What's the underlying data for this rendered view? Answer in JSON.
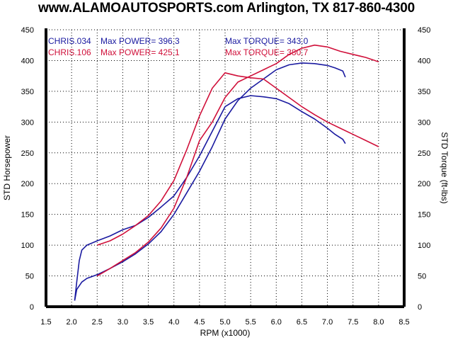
{
  "header": {
    "title": "www.ALAMOAUTOSPORTS.com Arlington, TX 817-860-4300"
  },
  "chart_data": {
    "type": "line",
    "xlabel": "RPM (x1000)",
    "ylabel": "STD Horsepower",
    "y2label": "STD Torque (ft-lbs)",
    "xlim": [
      1.5,
      8.5
    ],
    "ylim": [
      0,
      450
    ],
    "y2lim": [
      0,
      450
    ],
    "x_ticks": [
      "1.5",
      "2.0",
      "2.5",
      "3.0",
      "3.5",
      "4.0",
      "4.5",
      "5.0",
      "5.5",
      "6.0",
      "6.5",
      "7.0",
      "7.5",
      "8.0",
      "8.5"
    ],
    "y_ticks": [
      "0",
      "50",
      "100",
      "150",
      "200",
      "250",
      "300",
      "350",
      "400",
      "450"
    ],
    "grid": true,
    "legend": [
      {
        "run": "CHRIS.034",
        "power_label": "Max POWER= 396.3",
        "torque_label": "Max TORQUE= 343.0",
        "color": "#1a1aa0"
      },
      {
        "run": "CHRIS.106",
        "power_label": "Max POWER= 425.1",
        "torque_label": "Max TORQUE= 380.7",
        "color": "#d0103a"
      }
    ],
    "series": [
      {
        "name": "CHRIS.034",
        "measure": "power",
        "color": "#1a1aa0",
        "x": [
          2.06,
          2.1,
          2.2,
          2.3,
          2.5,
          2.75,
          3.0,
          3.25,
          3.5,
          3.75,
          4.0,
          4.25,
          4.5,
          4.75,
          5.0,
          5.25,
          5.5,
          5.75,
          6.0,
          6.25,
          6.5,
          6.75,
          7.0,
          7.15,
          7.3,
          7.35
        ],
        "y": [
          10,
          28,
          40,
          46,
          52,
          62,
          73,
          86,
          102,
          122,
          150,
          185,
          220,
          260,
          305,
          335,
          355,
          370,
          385,
          393,
          396,
          395,
          392,
          388,
          383,
          373
        ]
      },
      {
        "name": "CHRIS.034",
        "measure": "torque",
        "color": "#1a1aa0",
        "x": [
          2.06,
          2.1,
          2.15,
          2.2,
          2.3,
          2.5,
          2.75,
          3.0,
          3.25,
          3.5,
          3.75,
          4.0,
          4.25,
          4.5,
          4.75,
          5.0,
          5.25,
          5.5,
          5.75,
          6.0,
          6.25,
          6.5,
          6.75,
          7.0,
          7.15,
          7.3,
          7.35
        ],
        "y": [
          10,
          40,
          75,
          92,
          100,
          107,
          115,
          125,
          132,
          145,
          162,
          180,
          210,
          245,
          285,
          325,
          338,
          343,
          341,
          338,
          330,
          317,
          305,
          290,
          280,
          272,
          265
        ]
      },
      {
        "name": "CHRIS.106",
        "measure": "power",
        "color": "#d0103a",
        "x": [
          2.5,
          2.75,
          3.0,
          3.25,
          3.5,
          3.75,
          4.0,
          4.25,
          4.5,
          4.75,
          5.0,
          5.25,
          5.5,
          5.75,
          6.0,
          6.25,
          6.5,
          6.75,
          7.0,
          7.25,
          7.5,
          7.75,
          8.0
        ],
        "y": [
          50,
          62,
          75,
          88,
          105,
          128,
          160,
          210,
          270,
          300,
          340,
          365,
          375,
          385,
          395,
          410,
          420,
          425,
          422,
          415,
          410,
          405,
          398
        ]
      },
      {
        "name": "CHRIS.106",
        "measure": "torque",
        "color": "#d0103a",
        "x": [
          2.5,
          2.75,
          3.0,
          3.25,
          3.5,
          3.75,
          4.0,
          4.25,
          4.5,
          4.75,
          5.0,
          5.25,
          5.5,
          5.75,
          6.0,
          6.25,
          6.5,
          6.75,
          7.0,
          7.25,
          7.5,
          7.75,
          8.0
        ],
        "y": [
          100,
          107,
          118,
          132,
          148,
          172,
          205,
          255,
          310,
          355,
          380,
          375,
          372,
          370,
          355,
          340,
          325,
          312,
          300,
          290,
          280,
          270,
          260
        ]
      }
    ]
  }
}
